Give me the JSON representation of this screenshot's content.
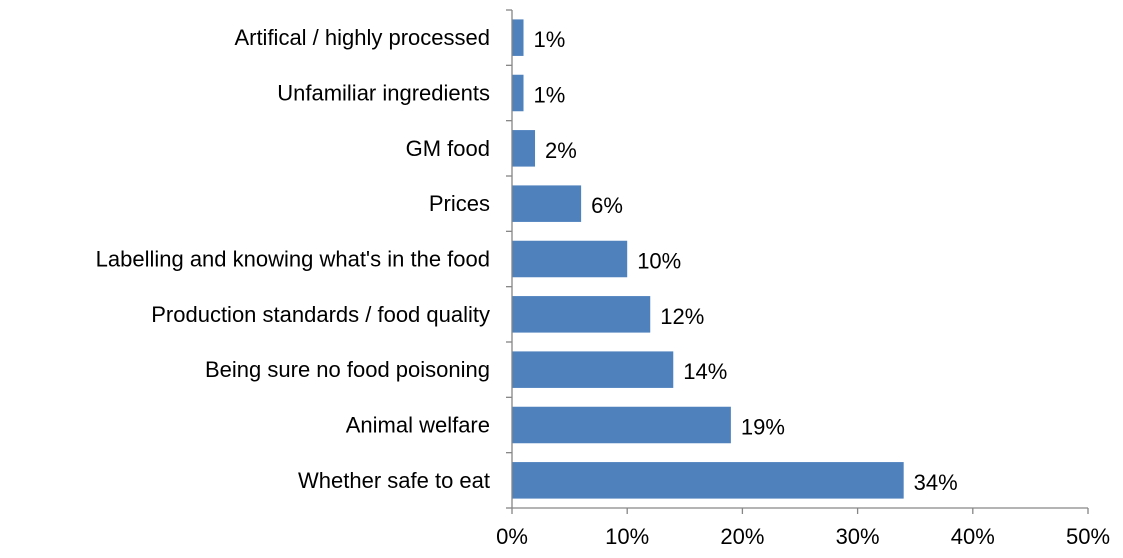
{
  "chart_data": {
    "type": "bar",
    "orientation": "horizontal",
    "title": "",
    "xlabel": "",
    "ylabel": "",
    "categories": [
      "Artifical / highly processed",
      "Unfamiliar ingredients",
      "GM food",
      "Prices",
      "Labelling and knowing what's in the food",
      "Production standards / food quality",
      "Being sure no food poisoning",
      "Animal welfare",
      "Whether safe to eat"
    ],
    "values": [
      1,
      1,
      2,
      6,
      10,
      12,
      14,
      19,
      34
    ],
    "value_labels": [
      "1%",
      "1%",
      "2%",
      "6%",
      "10%",
      "12%",
      "14%",
      "19%",
      "34%"
    ],
    "xlim": [
      0,
      50
    ],
    "xticks": [
      0,
      10,
      20,
      30,
      40,
      50
    ],
    "xtick_labels": [
      "0%",
      "10%",
      "20%",
      "30%",
      "40%",
      "50%"
    ],
    "grid": false,
    "legend": "none",
    "bar_color": "#4F81BD",
    "axis_color": "#868686"
  }
}
